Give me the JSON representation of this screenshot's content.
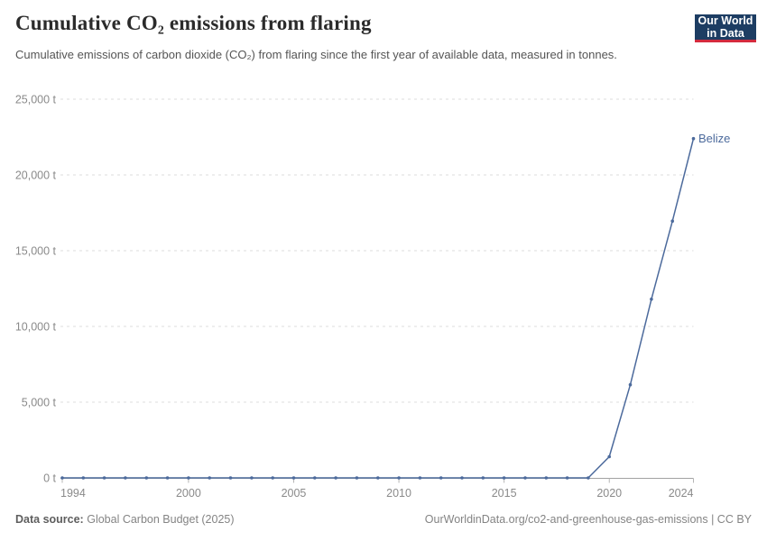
{
  "header": {
    "title": "Cumulative CO₂ emissions from flaring",
    "subtitle": "Cumulative emissions of carbon dioxide (CO₂) from flaring since the first year of available data, measured in tonnes.",
    "logo": {
      "line1": "Our World",
      "line2": "in Data"
    }
  },
  "chart_data": {
    "type": "line",
    "title": "Cumulative CO₂ emissions from flaring",
    "unit": "t",
    "entity": "Belize",
    "x": [
      1994,
      1995,
      1996,
      1997,
      1998,
      1999,
      2000,
      2001,
      2002,
      2003,
      2004,
      2005,
      2006,
      2007,
      2008,
      2009,
      2010,
      2011,
      2012,
      2013,
      2014,
      2015,
      2016,
      2017,
      2018,
      2019,
      2020,
      2021,
      2022,
      2023,
      2024
    ],
    "series": [
      {
        "name": "Belize",
        "color": "#4c6a9c",
        "values": [
          0,
          0,
          0,
          0,
          0,
          0,
          0,
          0,
          0,
          0,
          0,
          0,
          0,
          0,
          0,
          0,
          0,
          0,
          0,
          0,
          0,
          0,
          0,
          0,
          0,
          0,
          1400,
          6150,
          11800,
          16950,
          22400
        ]
      }
    ],
    "x_ticks": [
      1994,
      2000,
      2005,
      2010,
      2015,
      2020,
      2024
    ],
    "y_ticks": [
      {
        "value": 0,
        "label": "0 t"
      },
      {
        "value": 5000,
        "label": "5,000 t"
      },
      {
        "value": 10000,
        "label": "10,000 t"
      },
      {
        "value": 15000,
        "label": "15,000 t"
      },
      {
        "value": 20000,
        "label": "20,000 t"
      },
      {
        "value": 25000,
        "label": "25,000 t"
      }
    ],
    "xlim": [
      1994,
      2024
    ],
    "ylim": [
      0,
      25000
    ],
    "grid": "horizontal-dashed",
    "legend_position": "label-at-line-end",
    "colors": {
      "line": "#4c6a9c",
      "gridline": "#dcdcdc",
      "axis": "#a1a1a1",
      "tick_text": "#8a8a8a"
    }
  },
  "footer": {
    "source_label": "Data source:",
    "source_value": "Global Carbon Budget (2025)",
    "license_text": "OurWorldinData.org/co2-and-greenhouse-gas-emissions | CC BY"
  }
}
